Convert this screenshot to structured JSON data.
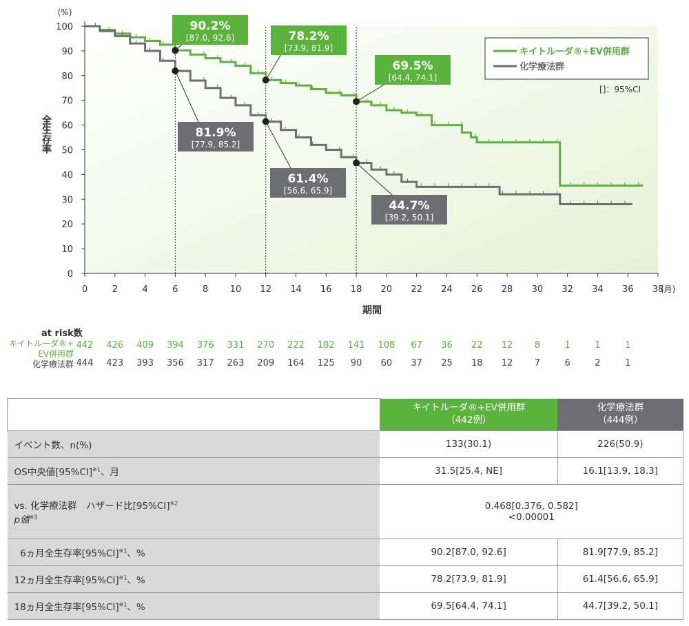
{
  "chart_data": {
    "type": "line",
    "ylabel": "全生存率",
    "yunit": "(%)",
    "xlabel": "期間",
    "xunit": "(月)",
    "xlim": [
      0,
      38
    ],
    "ylim": [
      0,
      100
    ],
    "xticks": [
      0,
      2,
      4,
      6,
      8,
      10,
      12,
      14,
      16,
      18,
      20,
      22,
      24,
      26,
      28,
      30,
      32,
      34,
      36,
      38
    ],
    "yticks": [
      0,
      10,
      20,
      30,
      40,
      50,
      60,
      70,
      80,
      90,
      100
    ],
    "legend_position": "top-right",
    "ci_note": "[]：95%CI",
    "series": [
      {
        "name": "キイトルーダ®+EV併用群",
        "color": "#5ab43c",
        "x": [
          0,
          1,
          2,
          3,
          4,
          5,
          6,
          7,
          8,
          9,
          10,
          11,
          12,
          13,
          14,
          15,
          16,
          17,
          18,
          19,
          20,
          21,
          22,
          23,
          25,
          25.6,
          26,
          31.5,
          37
        ],
        "y": [
          100,
          98.5,
          97,
          95.5,
          94,
          92.5,
          90.2,
          88.5,
          87,
          85.5,
          84,
          81,
          78.2,
          77,
          76,
          74.5,
          73,
          72,
          69.5,
          68,
          66,
          65,
          64,
          60,
          57,
          55,
          53,
          35.5,
          35.5
        ],
        "labels": [
          {
            "x": 6,
            "y": 90.2,
            "value": "90.2%",
            "ci": "[87.0, 92.6]"
          },
          {
            "x": 12,
            "y": 78.2,
            "value": "78.2%",
            "ci": "[73.9, 81.9]"
          },
          {
            "x": 18,
            "y": 69.5,
            "value": "69.5%",
            "ci": "[64.4, 74.1]"
          }
        ]
      },
      {
        "name": "化学療法群",
        "color": "#6e6e72",
        "x": [
          0,
          1,
          2,
          3,
          4,
          5,
          6,
          7,
          8,
          9,
          10,
          11,
          12,
          13,
          14,
          15,
          16,
          17,
          18,
          19,
          20,
          21,
          22,
          27.5,
          31.5,
          36.3
        ],
        "y": [
          100,
          98,
          96,
          93,
          90,
          86,
          81.9,
          78,
          75,
          71,
          68,
          64,
          61.4,
          58,
          55,
          52,
          50,
          47,
          44.7,
          42,
          40,
          37,
          35,
          32,
          28,
          28
        ],
        "labels": [
          {
            "x": 6,
            "y": 81.9,
            "value": "81.9%",
            "ci": "[77.9, 85.2]"
          },
          {
            "x": 12,
            "y": 61.4,
            "value": "61.4%",
            "ci": "[56.6, 65.9]"
          },
          {
            "x": 18,
            "y": 44.7,
            "value": "44.7%",
            "ci": "[39.2, 50.1]"
          }
        ]
      }
    ]
  },
  "at_risk": {
    "title": "at risk数",
    "rows": [
      {
        "label": "キイトルーダ®+ EV併用群",
        "color": "#5ab43c",
        "values": [
          442,
          426,
          409,
          394,
          376,
          331,
          270,
          222,
          182,
          141,
          108,
          67,
          36,
          22,
          12,
          8,
          1,
          1,
          1
        ]
      },
      {
        "label": "化学療法群",
        "color": "#444",
        "values": [
          444,
          423,
          393,
          356,
          317,
          263,
          209,
          164,
          125,
          90,
          60,
          37,
          25,
          18,
          12,
          7,
          6,
          2,
          1
        ]
      }
    ]
  },
  "table": {
    "headers": [
      {
        "label": "キイトルーダ®+EV併用群",
        "sub": "（442例）",
        "color": "#5ab43c"
      },
      {
        "label": "化学療法群",
        "sub": "（444例）",
        "color": "#6e6e72"
      }
    ],
    "rows": [
      {
        "label": "イベント数、n(%)",
        "a": "133(30.1)",
        "b": "226(50.9)"
      },
      {
        "label": "OS中央値[95%CI]",
        "sup": "※1",
        "tail": "、月",
        "a": "31.5[25.4, NE]",
        "b": "16.1[13.9, 18.3]"
      },
      {
        "label": "vs. 化学療法群　ハザード比[95%CI]",
        "sup": "※2",
        "label2": "p値",
        "sup2": "※3",
        "merged": "0.468[0.376, 0.582]",
        "merged2": "<0.00001"
      },
      {
        "label": "  6ヵ月全生存率[95%CI]",
        "sup": "※1",
        "tail": "、%",
        "a": "90.2[87.0, 92.6]",
        "b": "81.9[77.9, 85.2]"
      },
      {
        "label": "12ヵ月全生存率[95%CI]",
        "sup": "※1",
        "tail": "、%",
        "a": "78.2[73.9, 81.9]",
        "b": "61.4[56.6, 65.9]"
      },
      {
        "label": "18ヵ月全生存率[95%CI]",
        "sup": "※1",
        "tail": "、%",
        "a": "69.5[64.4, 74.1]",
        "b": "44.7[39.2, 50.1]"
      }
    ]
  }
}
